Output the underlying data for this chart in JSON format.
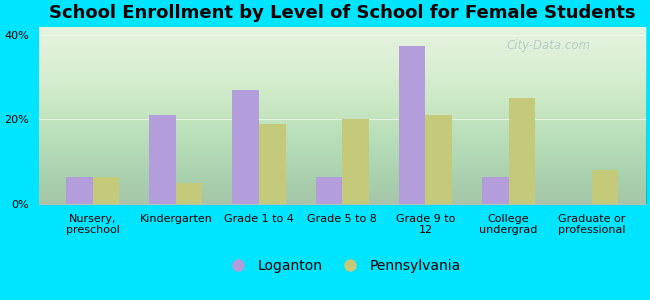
{
  "title": "School Enrollment by Level of School for Female Students",
  "categories": [
    "Nursery,\npreschool",
    "Kindergarten",
    "Grade 1 to 4",
    "Grade 5 to 8",
    "Grade 9 to\n12",
    "College\nundergrad",
    "Graduate or\nprofessional"
  ],
  "loganton_values": [
    6.5,
    21,
    27,
    6.5,
    37.5,
    6.5,
    0
  ],
  "pennsylvania_values": [
    6.5,
    5,
    19,
    20,
    21,
    25,
    8
  ],
  "loganton_color": "#b39ddb",
  "pennsylvania_color": "#c5c97a",
  "background_color": "#00e5ff",
  "ylabel_ticks": [
    "0%",
    "20%",
    "40%"
  ],
  "yticks": [
    0,
    20,
    40
  ],
  "ylim": [
    0,
    42
  ],
  "legend_labels": [
    "Loganton",
    "Pennsylvania"
  ],
  "title_fontsize": 13,
  "tick_fontsize": 8,
  "legend_fontsize": 10,
  "watermark_text": "City-Data.com",
  "bar_width": 0.32
}
